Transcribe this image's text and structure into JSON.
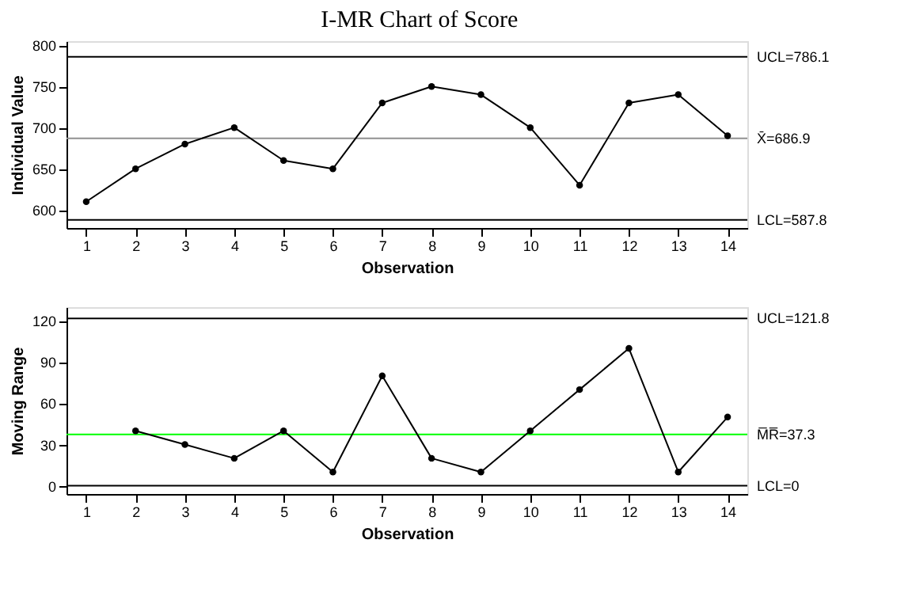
{
  "chart_data": [
    {
      "type": "line",
      "title": "I-MR Chart of Score",
      "xlabel": "Observation",
      "ylabel": "Individual Value",
      "x": [
        1,
        2,
        3,
        4,
        5,
        6,
        7,
        8,
        9,
        10,
        11,
        12,
        13,
        14
      ],
      "series": [
        {
          "color": "#000000",
          "values": [
            610,
            650,
            680,
            700,
            660,
            650,
            730,
            750,
            740,
            700,
            630,
            730,
            740,
            690
          ]
        }
      ],
      "xlim": [
        0.6,
        14.4
      ],
      "xticks": [
        1,
        2,
        3,
        4,
        5,
        6,
        7,
        8,
        9,
        10,
        11,
        12,
        13,
        14
      ],
      "ylim": [
        578,
        805
      ],
      "yticks": [
        600,
        650,
        700,
        750,
        800
      ],
      "ref_lines": [
        {
          "axis": "y",
          "value": 786.1,
          "label": "UCL=786.1",
          "color": "#000000"
        },
        {
          "axis": "y",
          "value": 686.9,
          "label": "X̄=686.9",
          "color": "#909090"
        },
        {
          "axis": "y",
          "value": 587.8,
          "label": "LCL=587.8",
          "color": "#000000"
        }
      ],
      "grid": false,
      "marker": "circle",
      "line_style": "solid"
    },
    {
      "type": "line",
      "xlabel": "Observation",
      "ylabel": "Moving Range",
      "x": [
        2,
        3,
        4,
        5,
        6,
        7,
        8,
        9,
        10,
        11,
        12,
        13,
        14
      ],
      "series": [
        {
          "color": "#000000",
          "values": [
            40,
            30,
            20,
            40,
            10,
            80,
            20,
            10,
            40,
            70,
            100,
            10,
            50
          ]
        }
      ],
      "xlim": [
        0.6,
        14.4
      ],
      "xticks": [
        1,
        2,
        3,
        4,
        5,
        6,
        7,
        8,
        9,
        10,
        11,
        12,
        13,
        14
      ],
      "ylim": [
        -6,
        130
      ],
      "yticks": [
        0,
        30,
        60,
        90,
        120
      ],
      "ref_lines": [
        {
          "axis": "y",
          "value": 121.8,
          "label": "UCL=121.8",
          "color": "#000000"
        },
        {
          "axis": "y",
          "value": 37.3,
          "label": "M̅R̅=37.3",
          "color": "#00ff00"
        },
        {
          "axis": "y",
          "value": 0,
          "label": "LCL=0",
          "color": "#000000"
        }
      ],
      "grid": false,
      "marker": "circle",
      "line_style": "solid"
    }
  ]
}
